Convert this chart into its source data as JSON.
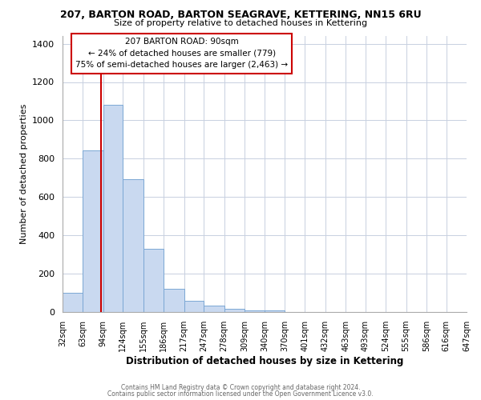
{
  "title_line1": "207, BARTON ROAD, BARTON SEAGRAVE, KETTERING, NN15 6RU",
  "title_line2": "Size of property relative to detached houses in Kettering",
  "xlabel": "Distribution of detached houses by size in Kettering",
  "ylabel": "Number of detached properties",
  "bar_color": "#c9d9f0",
  "bar_edge_color": "#7ba7d4",
  "background_color": "#ffffff",
  "grid_color": "#c8d0e0",
  "vline_x": 90,
  "vline_color": "#cc0000",
  "bin_edges": [
    32,
    63,
    94,
    124,
    155,
    186,
    217,
    247,
    278,
    309,
    340,
    370,
    401,
    432,
    463,
    493,
    524,
    555,
    586,
    616,
    647
  ],
  "bar_heights": [
    100,
    843,
    1079,
    692,
    330,
    120,
    60,
    32,
    18,
    10,
    10,
    0,
    0,
    0,
    0,
    0,
    0,
    0,
    0,
    0
  ],
  "tick_labels": [
    "32sqm",
    "63sqm",
    "94sqm",
    "124sqm",
    "155sqm",
    "186sqm",
    "217sqm",
    "247sqm",
    "278sqm",
    "309sqm",
    "340sqm",
    "370sqm",
    "401sqm",
    "432sqm",
    "463sqm",
    "493sqm",
    "524sqm",
    "555sqm",
    "586sqm",
    "616sqm",
    "647sqm"
  ],
  "ylim": [
    0,
    1440
  ],
  "yticks": [
    0,
    200,
    400,
    600,
    800,
    1000,
    1200,
    1400
  ],
  "annotation_title": "207 BARTON ROAD: 90sqm",
  "annotation_line2": "← 24% of detached houses are smaller (779)",
  "annotation_line3": "75% of semi-detached houses are larger (2,463) →",
  "annotation_box_color": "#ffffff",
  "annotation_box_edge_color": "#cc0000",
  "footer_line1": "Contains HM Land Registry data © Crown copyright and database right 2024.",
  "footer_line2": "Contains public sector information licensed under the Open Government Licence v3.0."
}
